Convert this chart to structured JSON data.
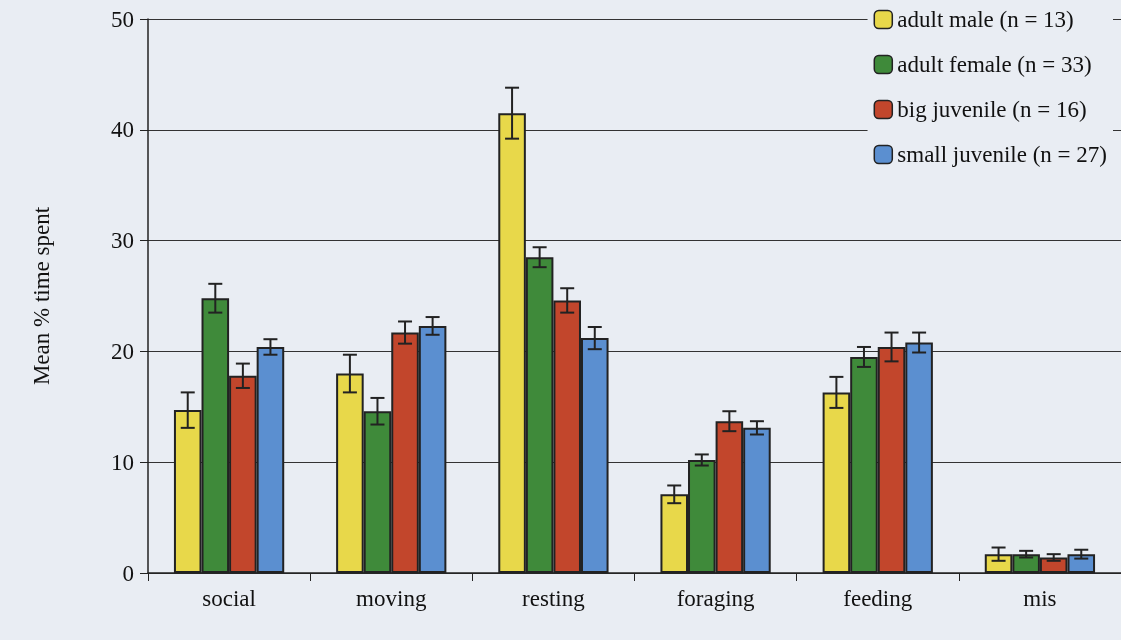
{
  "chart_data": {
    "type": "bar",
    "ylabel": "Mean % time spent",
    "categories": [
      "social",
      "moving",
      "resting",
      "foraging",
      "feeding",
      "mis"
    ],
    "series": [
      {
        "name": "adult male (n = 13)",
        "color": "#e8d84a",
        "values": [
          14.7,
          18.0,
          41.5,
          7.1,
          16.3,
          1.7
        ],
        "errors": [
          1.6,
          1.7,
          2.3,
          0.8,
          1.4,
          0.6
        ]
      },
      {
        "name": "adult female (n = 33)",
        "color": "#3f8a3a",
        "values": [
          24.8,
          14.6,
          28.5,
          10.2,
          19.5,
          1.7
        ],
        "errors": [
          1.3,
          1.2,
          0.9,
          0.5,
          0.9,
          0.3
        ]
      },
      {
        "name": "big juvenile (n = 16)",
        "color": "#c2462c",
        "values": [
          17.8,
          21.7,
          24.6,
          13.7,
          20.4,
          1.4
        ],
        "errors": [
          1.1,
          1.0,
          1.1,
          0.9,
          1.3,
          0.3
        ]
      },
      {
        "name": "small juvenile (n = 27)",
        "color": "#5b8fd0",
        "values": [
          20.4,
          22.3,
          21.2,
          13.1,
          20.8,
          1.7
        ],
        "errors": [
          0.7,
          0.8,
          1.0,
          0.6,
          0.9,
          0.4
        ]
      }
    ],
    "ylim": [
      0,
      50
    ],
    "yticks": [
      0,
      10,
      20,
      30,
      40,
      50
    ],
    "grid": "y",
    "legend": "top right"
  }
}
